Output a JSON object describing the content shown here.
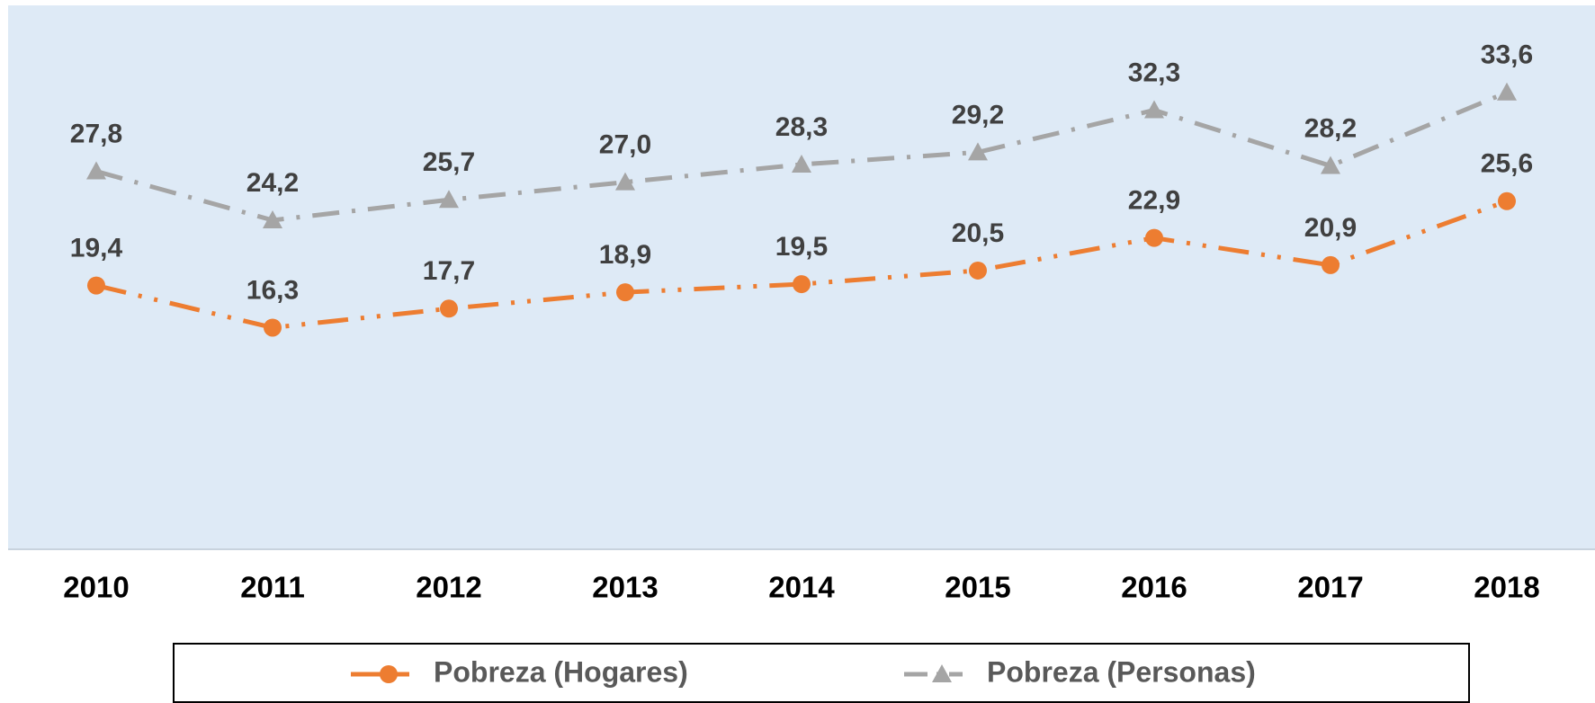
{
  "chart_data": {
    "type": "line",
    "categories": [
      "2010",
      "2011",
      "2012",
      "2013",
      "2014",
      "2015",
      "2016",
      "2017",
      "2018"
    ],
    "ylim": [
      0,
      40
    ],
    "legend": "bottom",
    "series": [
      {
        "name": "Pobreza (Hogares)",
        "color": "#ED7D31",
        "marker": "circle",
        "values": [
          19.4,
          16.3,
          17.7,
          18.9,
          19.5,
          20.5,
          22.9,
          20.9,
          25.6
        ],
        "value_labels": [
          "19,4",
          "16,3",
          "17,7",
          "18,9",
          "19,5",
          "20,5",
          "22,9",
          "20,9",
          "25,6"
        ]
      },
      {
        "name": "Pobreza (Personas)",
        "color": "#A5A5A5",
        "marker": "triangle",
        "values": [
          27.8,
          24.2,
          25.7,
          27.0,
          28.3,
          29.2,
          32.3,
          28.2,
          33.6
        ],
        "value_labels": [
          "27,8",
          "24,2",
          "25,7",
          "27,0",
          "28,3",
          "29,2",
          "32,3",
          "28,2",
          "33,6"
        ]
      }
    ]
  }
}
